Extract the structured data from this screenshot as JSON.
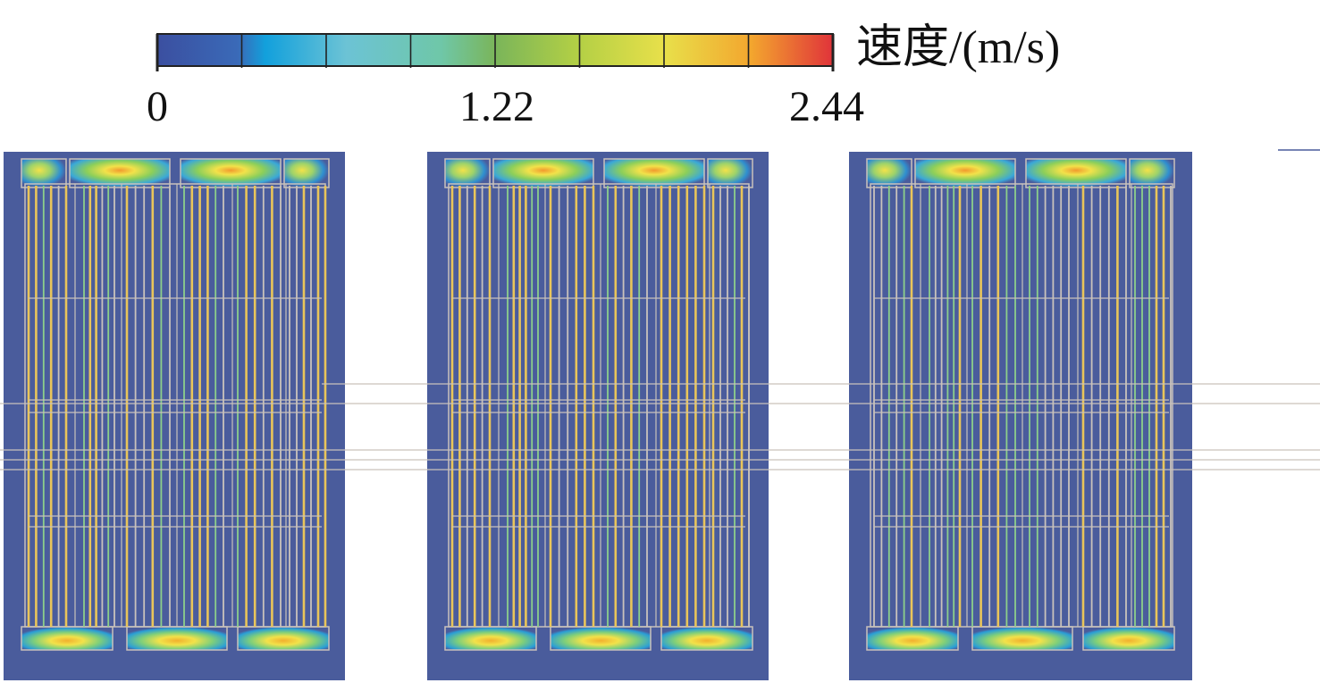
{
  "colorbar": {
    "unit_label": "速度/(m/s)",
    "min": 0,
    "max": 2.44,
    "tick_labels": [
      "0",
      "1.22",
      "2.44"
    ],
    "tick_values": [
      0,
      1.22,
      2.44
    ],
    "segments": 8,
    "colors": [
      "#3b4fa0",
      "#1e96d8",
      "#6cc3d5",
      "#7fbf6a",
      "#c6d84a",
      "#f2e24a",
      "#f29a2e",
      "#e03a3a"
    ]
  },
  "panels": {
    "count": 3,
    "background_color": "#4a5c9c",
    "outline_color": "#c9c2bb",
    "fast_color": "#e9c55a",
    "mid_color": "#8ccf8a"
  }
}
